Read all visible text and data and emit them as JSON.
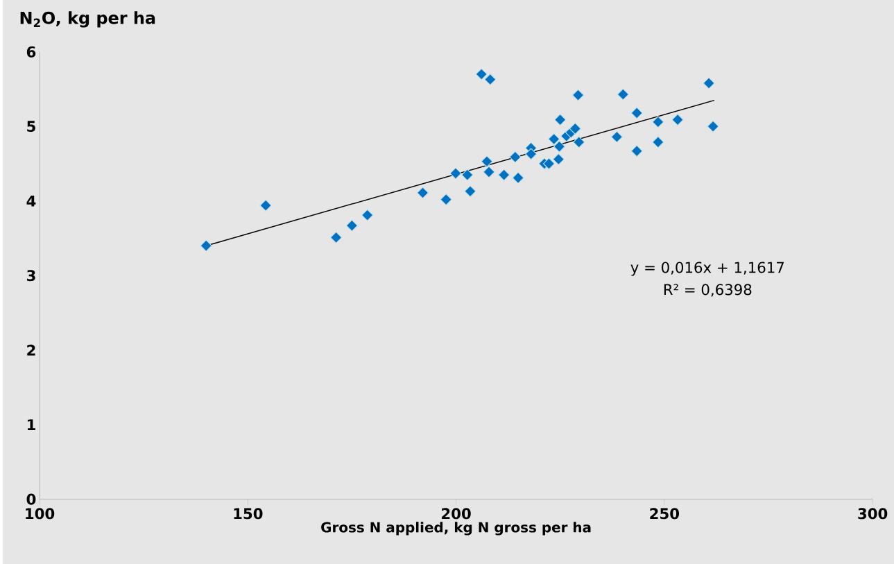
{
  "chart_data": {
    "type": "scatter",
    "xlabel": "Gross N applied, kg N gross per ha",
    "ylabel": "N$_{2}$O, kg per ha",
    "xlim": [
      100,
      300
    ],
    "xticks": [
      100,
      150,
      200,
      250,
      300
    ],
    "ylim": [
      0,
      6
    ],
    "yticks": [
      0,
      1,
      2,
      3,
      4,
      5,
      6
    ],
    "grid": false,
    "annotations": [
      "y = 0,016x + 1,1617",
      "R² = 0,6398"
    ],
    "series": [
      {
        "color": "#0070c0",
        "marker": "diamond",
        "x": [
          140.0,
          154.3,
          171.2,
          175.0,
          178.7,
          192.0,
          197.6,
          199.9,
          202.7,
          203.4,
          206.1,
          208.2,
          207.4,
          207.9,
          211.5,
          214.2,
          214.9,
          218.0,
          218.0,
          221.2,
          222.3,
          223.5,
          224.6,
          224.8,
          225.0,
          226.5,
          227.6,
          228.6,
          229.5,
          229.3,
          238.6,
          240.1,
          243.4,
          243.4,
          248.5,
          248.5,
          253.2,
          260.7,
          261.7
        ],
        "values": [
          3.4,
          3.94,
          3.51,
          3.67,
          3.81,
          4.11,
          4.02,
          4.37,
          4.35,
          4.13,
          5.7,
          5.63,
          4.53,
          4.39,
          4.35,
          4.59,
          4.31,
          4.71,
          4.63,
          4.5,
          4.5,
          4.83,
          4.56,
          4.73,
          5.09,
          4.87,
          4.92,
          4.97,
          4.79,
          5.42,
          4.86,
          5.43,
          5.18,
          4.67,
          5.06,
          4.79,
          5.09,
          5.58,
          5.0
        ]
      },
      {
        "type": "line",
        "color": "#000000",
        "marker": "none",
        "x": [
          140,
          262
        ],
        "values": [
          3.4,
          5.35
        ]
      }
    ]
  }
}
